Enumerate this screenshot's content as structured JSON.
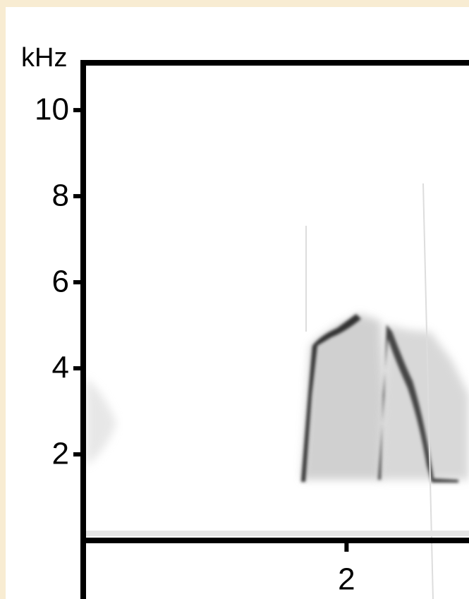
{
  "chart_data": {
    "type": "spectrogram",
    "y_label": "kHz",
    "ylim": [
      0,
      11.1
    ],
    "yticks": [
      2,
      4,
      6,
      8,
      10
    ],
    "xlim": [
      0,
      2.93
    ],
    "xticks": [
      2
    ]
  }
}
